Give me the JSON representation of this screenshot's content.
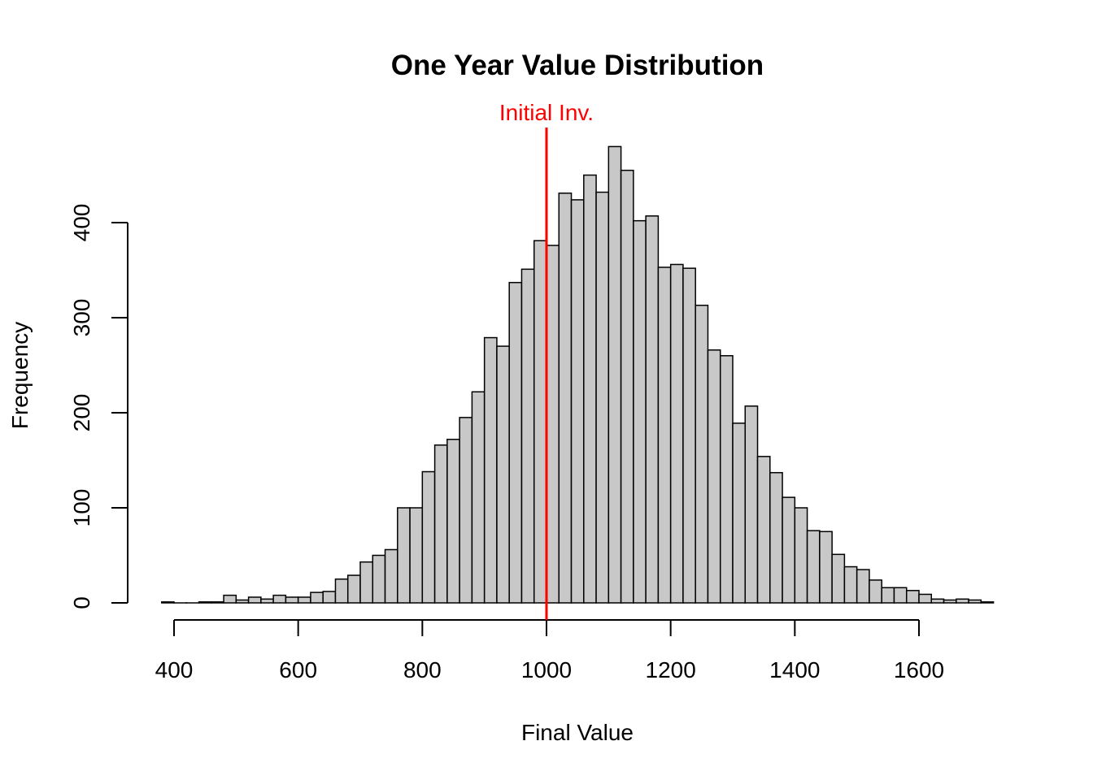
{
  "chart_data": {
    "type": "bar",
    "title": "One Year Value Distribution",
    "xlabel": "Final Value",
    "ylabel": "Frequency",
    "bin_width": 20,
    "bin_start": 380,
    "values": [
      1,
      0,
      0,
      1,
      1,
      8,
      3,
      6,
      4,
      8,
      6,
      6,
      11,
      12,
      25,
      29,
      43,
      50,
      56,
      100,
      100,
      138,
      166,
      172,
      195,
      222,
      279,
      270,
      337,
      351,
      381,
      376,
      431,
      424,
      450,
      432,
      480,
      455,
      402,
      407,
      353,
      356,
      352,
      313,
      266,
      260,
      189,
      207,
      154,
      137,
      111,
      100,
      76,
      75,
      51,
      38,
      35,
      24,
      16,
      16,
      13,
      9,
      4,
      3,
      4,
      3,
      1
    ],
    "xlim": [
      380,
      1720
    ],
    "ylim": [
      0,
      480
    ],
    "x_ticks": [
      "400",
      "600",
      "800",
      "1000",
      "1200",
      "1400",
      "1600"
    ],
    "y_ticks": [
      "0",
      "100",
      "200",
      "300",
      "400"
    ],
    "bar_color": "#c8c8c8",
    "grid": false,
    "vline": {
      "x": 1000,
      "label": "Initial Inv.",
      "color": "#ff0000"
    }
  }
}
